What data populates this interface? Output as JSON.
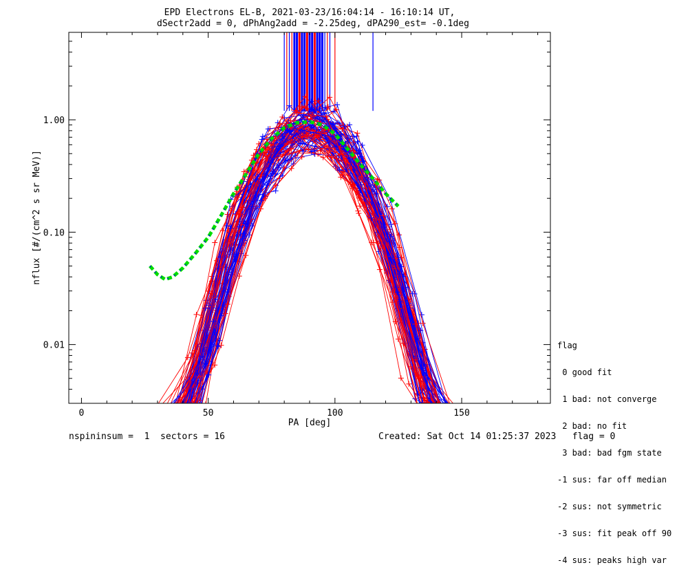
{
  "chart_data": {
    "type": "line",
    "title_line1": "EPD Electrons EL-B, 2021-03-23/16:04:14 - 16:10:14 UT,",
    "title_line2": "dSectr2add = 0, dPhAng2add = -2.25deg, dPA290_est=  -0.1deg",
    "xlabel": "PA [deg]",
    "ylabel": "nflux [#/(cm^2 s sr MeV)]",
    "xlim": [
      -5,
      185
    ],
    "ylim": [
      0.003,
      6
    ],
    "yscale": "log",
    "xticks": [
      0,
      50,
      100,
      150
    ],
    "xtick_labels": [
      "0",
      "50",
      "100",
      "150"
    ],
    "yticks": [
      0.01,
      0.1,
      1.0
    ],
    "ytick_labels": [
      "0.01",
      "0.10",
      "1.00"
    ],
    "series_colors": {
      "red": "#ff0000",
      "blue": "#0000ff",
      "fit": "#00dd00",
      "fit_dash": "#0000ff"
    },
    "fit_curve": {
      "x": [
        27,
        30,
        33,
        36,
        40,
        45,
        50,
        55,
        60,
        65,
        70,
        75,
        80,
        85,
        90,
        95,
        100,
        105,
        110,
        115,
        120,
        125
      ],
      "y": [
        0.05,
        0.042,
        0.038,
        0.04,
        0.048,
        0.065,
        0.09,
        0.14,
        0.22,
        0.33,
        0.5,
        0.68,
        0.85,
        0.94,
        0.96,
        0.9,
        0.75,
        0.55,
        0.4,
        0.3,
        0.22,
        0.17
      ]
    },
    "vertical_lines": {
      "x": [
        80,
        81,
        82,
        83,
        84,
        85,
        86,
        87,
        88,
        89,
        90,
        91,
        92,
        93,
        94,
        95,
        96,
        97,
        98,
        100,
        115
      ],
      "color": [
        "blue",
        "red",
        "blue",
        "red",
        "blue",
        "blue",
        "red",
        "blue",
        "blue",
        "red",
        "blue",
        "blue",
        "red",
        "blue",
        "blue",
        "blue",
        "blue",
        "red",
        "blue",
        "red",
        "blue"
      ],
      "y_bottom": 1.2
    }
  },
  "legend": {
    "title": "flag",
    "items": [
      " 0 good fit",
      " 1 bad: not converge",
      " 2 bad: no fit",
      " 3 bad: bad fgm state",
      "-1 sus: far off median",
      "-2 sus: not symmetric",
      "-3 sus: fit peak off 90",
      "-4 sus: peaks high var"
    ]
  },
  "footer": {
    "left": "nspininsum =  1  sectors = 16",
    "right": "Created: Sat Oct 14 01:25:37 2023   flag = 0"
  }
}
